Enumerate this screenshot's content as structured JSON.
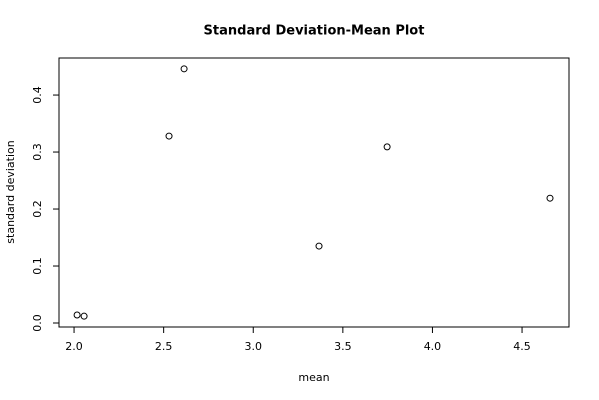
{
  "chart_data": {
    "type": "scatter",
    "title": "Standard Deviation-Mean Plot",
    "x_label": "mean",
    "y_label": "standard deviation",
    "x": [
      2.017,
      2.056,
      2.53,
      2.614,
      3.367,
      3.747,
      4.656
    ],
    "values": [
      0.014,
      0.012,
      0.328,
      0.446,
      0.135,
      0.309,
      0.219
    ],
    "color": "#000000",
    "xlim": [
      1.916,
      4.762
    ],
    "ylim": [
      -0.007,
      0.465
    ],
    "xticks": [
      {
        "value": 2,
        "label": "2.0"
      },
      2.5,
      {
        "value": 3,
        "label": "3.0"
      },
      3.5,
      {
        "value": 4,
        "label": "4.0"
      },
      4.5
    ],
    "yticks": [
      {
        "value": 0,
        "label": "0.0"
      },
      0.1,
      0.2,
      0.3,
      0.4
    ],
    "grid": false
  }
}
